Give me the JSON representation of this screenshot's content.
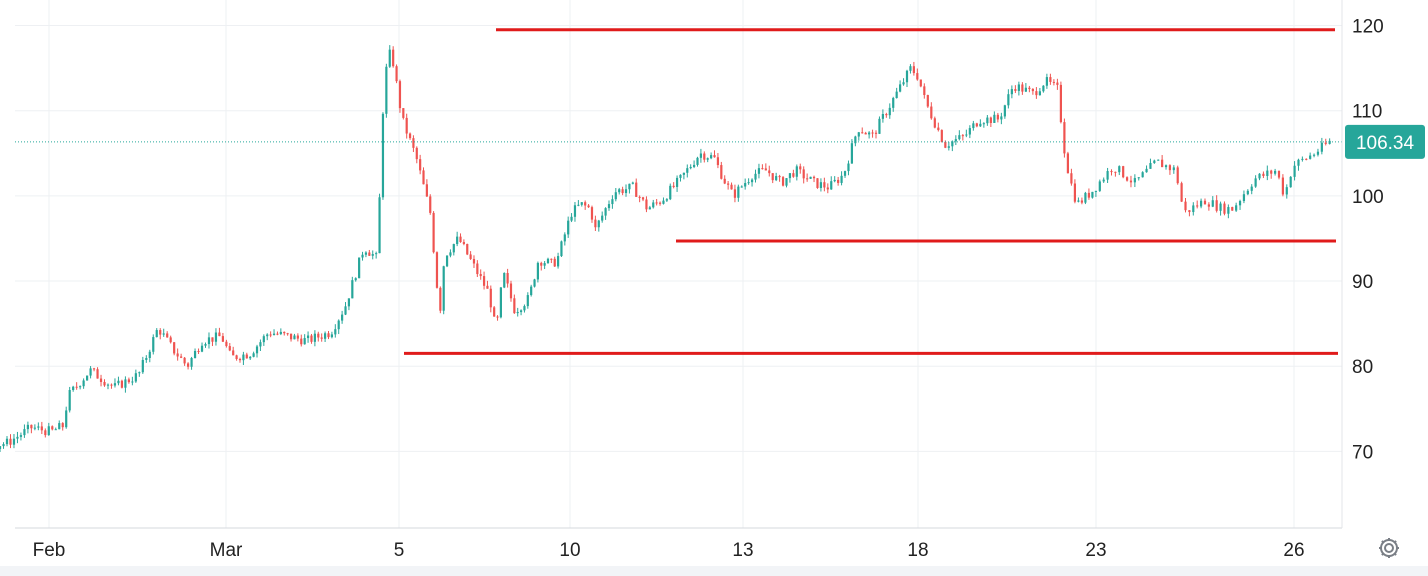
{
  "chart_data": {
    "type": "candlestick",
    "title": "",
    "xlabel": "",
    "ylabel": "",
    "ylim": [
      61,
      123
    ],
    "y_ticks": [
      70,
      80,
      90,
      100,
      110,
      120
    ],
    "x_tick_labels": [
      "Feb",
      "Mar",
      "5",
      "10",
      "13",
      "18",
      "23",
      "26"
    ],
    "grid": true,
    "last_price": 106.34,
    "last_price_label": "106.34",
    "x": [
      "Feb",
      "Mar",
      "5",
      "10",
      "13",
      "18",
      "23",
      "26"
    ],
    "series": [
      {
        "path": [
          [
            0,
            71.5
          ],
          [
            0.8,
            71.2
          ],
          [
            1.5,
            71.0
          ],
          [
            2.2,
            70.8
          ],
          [
            2.6,
            70.1
          ],
          [
            2.9,
            69.6
          ],
          [
            3.15,
            72.0
          ],
          [
            3.4,
            70.6
          ],
          [
            3.8,
            71.0
          ],
          [
            4.3,
            72.8
          ],
          [
            4.7,
            72.3
          ],
          [
            4.95,
            73.0
          ],
          [
            5.05,
            76.5
          ],
          [
            5.5,
            79.5
          ],
          [
            6.0,
            77.5
          ],
          [
            6.5,
            79.0
          ],
          [
            6.9,
            84.5
          ],
          [
            7.2,
            82.0
          ],
          [
            7.5,
            80.0
          ],
          [
            7.8,
            83.0
          ],
          [
            8.2,
            83.5
          ],
          [
            8.4,
            81.0
          ],
          [
            8.8,
            81.5
          ],
          [
            9.2,
            84.0
          ],
          [
            9.6,
            83.5
          ],
          [
            10.0,
            83.0
          ],
          [
            10.5,
            84.0
          ],
          [
            10.8,
            87.0
          ],
          [
            11.2,
            94.0
          ],
          [
            11.5,
            92.5
          ],
          [
            11.55,
            107.0
          ],
          [
            11.7,
            117.0
          ],
          [
            11.8,
            116.0
          ],
          [
            12.0,
            109.0
          ],
          [
            12.3,
            104.5
          ],
          [
            12.6,
            98.0
          ],
          [
            12.8,
            86.0
          ],
          [
            12.9,
            93.0
          ],
          [
            13.2,
            95.0
          ],
          [
            13.5,
            92.0
          ],
          [
            13.7,
            90.0
          ],
          [
            13.85,
            88.5
          ],
          [
            14.0,
            84.0
          ],
          [
            14.15,
            91.0
          ],
          [
            14.4,
            86.5
          ],
          [
            14.7,
            88.0
          ],
          [
            14.9,
            92.5
          ],
          [
            15.2,
            92.0
          ],
          [
            15.3,
            92.5
          ],
          [
            15.6,
            98.0
          ],
          [
            15.8,
            99.0
          ],
          [
            16.0,
            98.5
          ],
          [
            16.1,
            96.0
          ],
          [
            16.5,
            100.5
          ],
          [
            16.9,
            101.0
          ],
          [
            17.2,
            98.5
          ],
          [
            17.5,
            99.5
          ],
          [
            17.9,
            102.0
          ],
          [
            18.3,
            105.0
          ],
          [
            18.6,
            104.5
          ],
          [
            18.8,
            102.0
          ],
          [
            19.0,
            100.0
          ],
          [
            19.4,
            102.5
          ],
          [
            19.7,
            103.0
          ],
          [
            20.0,
            101.5
          ],
          [
            20.3,
            103.0
          ],
          [
            20.7,
            101.5
          ],
          [
            21.0,
            101.0
          ],
          [
            21.3,
            102.5
          ],
          [
            21.6,
            108.0
          ],
          [
            21.9,
            107.0
          ],
          [
            22.2,
            110.0
          ],
          [
            22.5,
            113.0
          ],
          [
            22.7,
            115.0
          ],
          [
            22.85,
            114.0
          ],
          [
            23.0,
            111.0
          ],
          [
            23.4,
            106.0
          ],
          [
            23.8,
            107.0
          ],
          [
            24.1,
            109.0
          ],
          [
            24.5,
            109.0
          ],
          [
            24.8,
            113.0
          ],
          [
            25.2,
            112.0
          ],
          [
            25.45,
            113.5
          ],
          [
            25.7,
            112.5
          ],
          [
            25.85,
            105.0
          ],
          [
            25.95,
            102.0
          ],
          [
            26.1,
            99.0
          ],
          [
            26.4,
            100.5
          ],
          [
            26.8,
            103.5
          ],
          [
            27.2,
            101.5
          ],
          [
            27.6,
            104.0
          ],
          [
            27.95,
            103.0
          ],
          [
            28.1,
            98.0
          ],
          [
            28.5,
            99.5
          ],
          [
            28.8,
            98.5
          ],
          [
            29.0,
            98.5
          ],
          [
            29.4,
            102.0
          ],
          [
            29.8,
            103.0
          ],
          [
            29.95,
            100.0
          ],
          [
            30.1,
            103.5
          ],
          [
            30.5,
            105.0
          ],
          [
            30.78,
            106.34
          ]
        ]
      }
    ],
    "resistance_lines": [
      119.5,
      94.7,
      81.5
    ],
    "colors": {
      "up": "#26a69a",
      "down": "#ef5350",
      "trendline": "#e01b1b",
      "grid": "#eef0f3",
      "price_badge": "#26a69a",
      "price_line": "#26a69a"
    }
  }
}
